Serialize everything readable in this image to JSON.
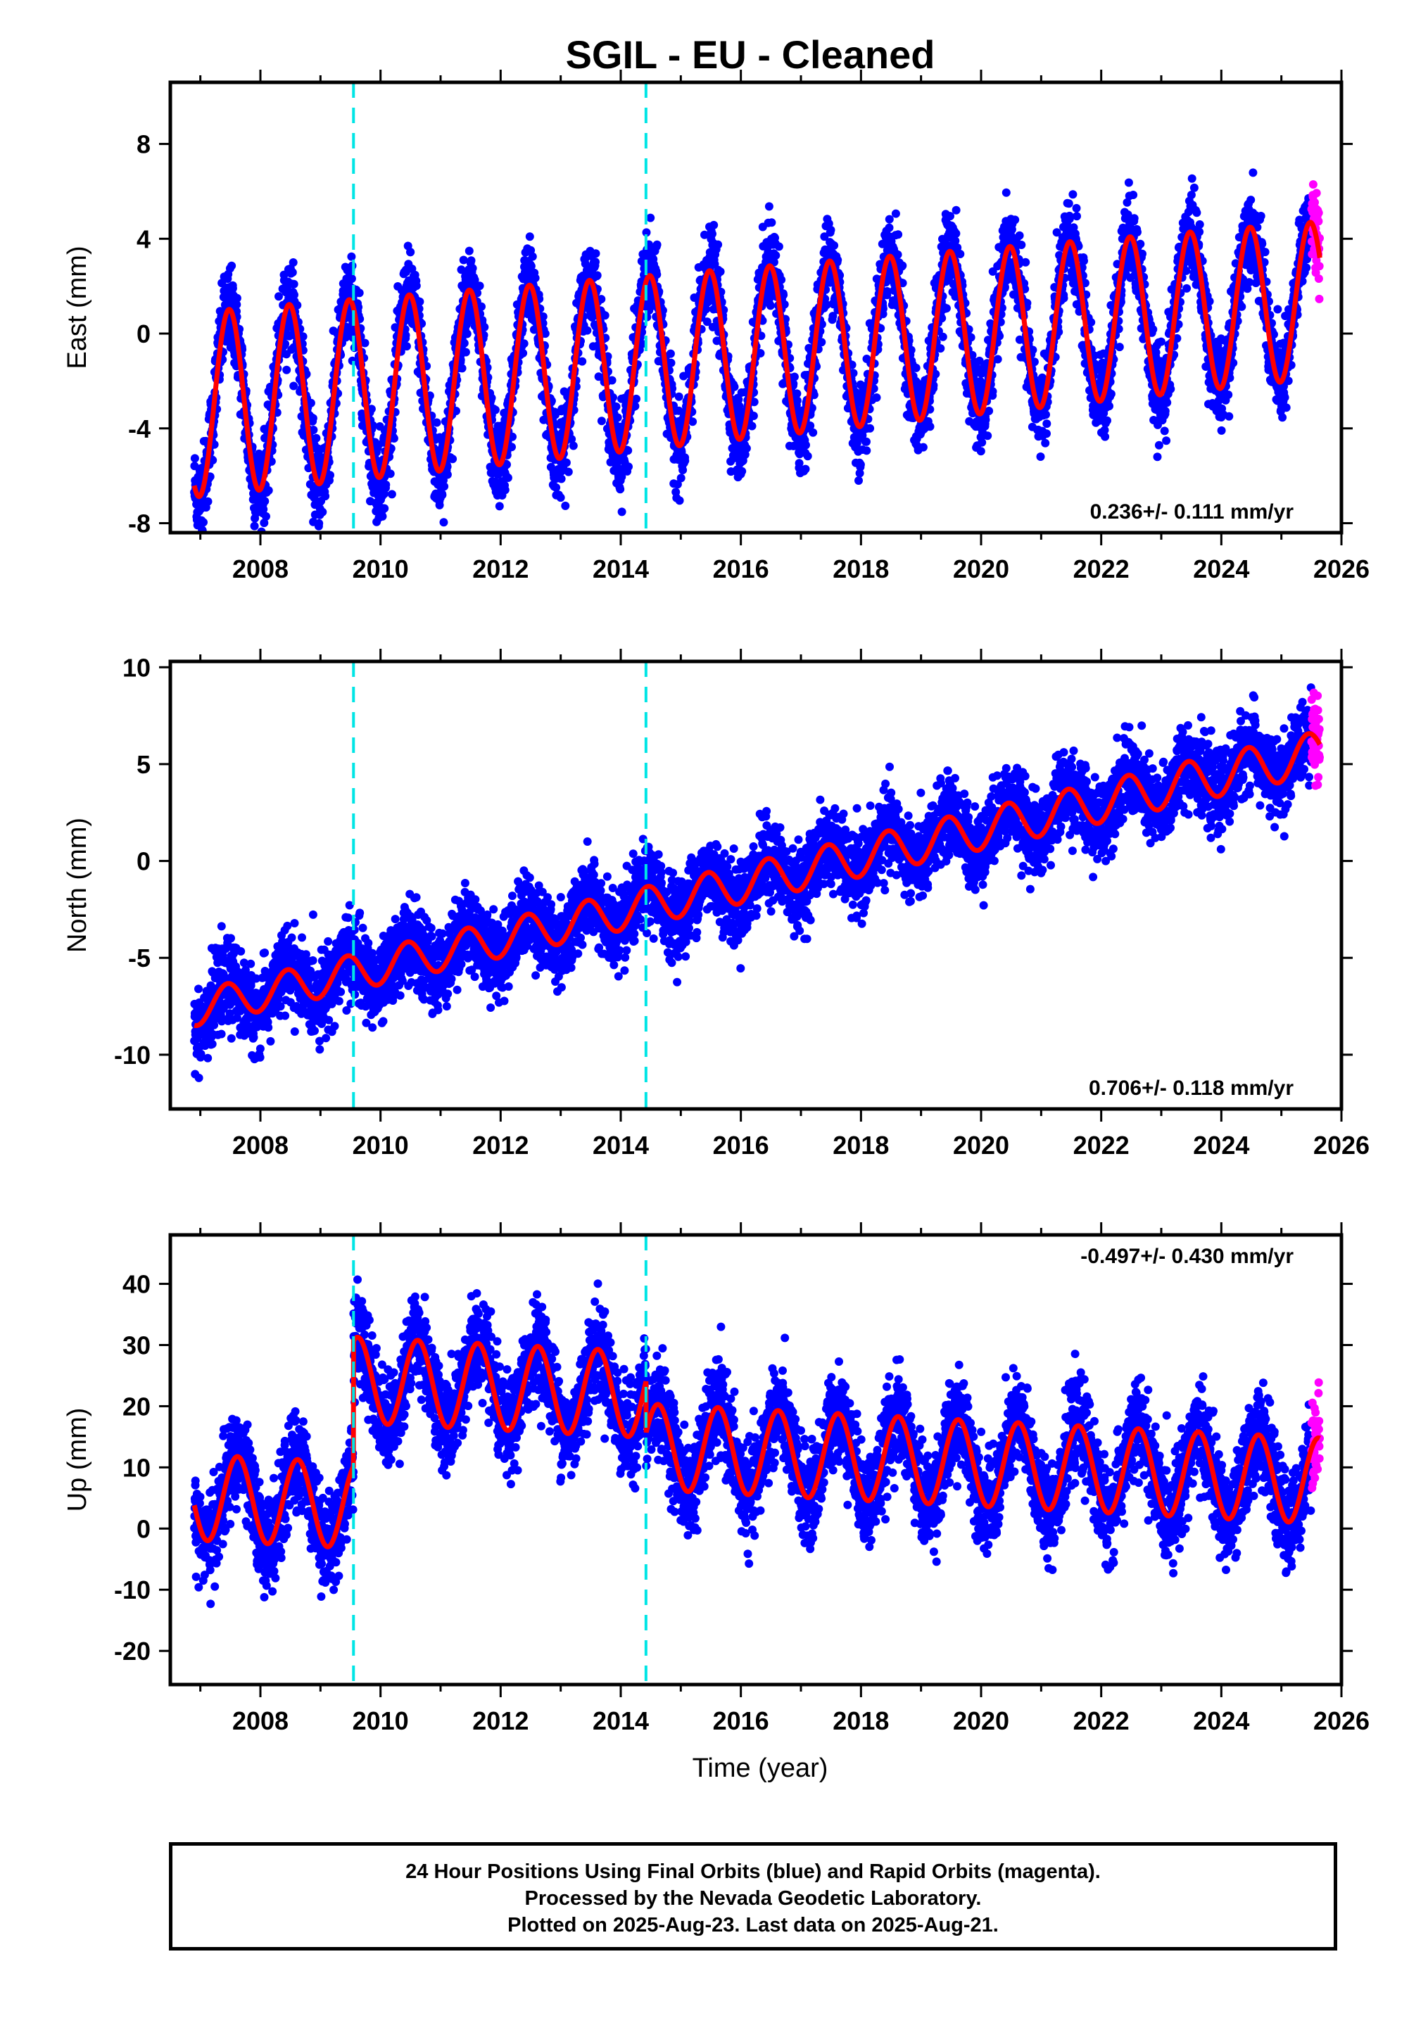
{
  "title": "SGIL  - EU - Cleaned",
  "x_axis_title": "Time (year)",
  "caption": {
    "line1": "24 Hour Positions Using Final Orbits (blue) and Rapid Orbits (magenta).",
    "line2": "Processed by the Nevada Geodetic Laboratory.",
    "line3": "Plotted on 2025-Aug-23. Last data on 2025-Aug-21."
  },
  "colors": {
    "final_orbits": "#0000ff",
    "rapid_orbits": "#ff00ff",
    "model": "#ff0000",
    "offsets": "#00e5e5",
    "frame": "#000000"
  },
  "chart_data": [
    {
      "type": "scatter",
      "panel": "east",
      "ylabel": "East (mm)",
      "xlim": [
        2006.5,
        2026
      ],
      "ylim": [
        -8.4,
        10.6
      ],
      "x_ticks": [
        2008,
        2010,
        2012,
        2014,
        2016,
        2018,
        2020,
        2022,
        2024,
        2026
      ],
      "x_tick_labels": [
        "2008",
        "2010",
        "2012",
        "2014",
        "2016",
        "2018",
        "2020",
        "2022",
        "2024",
        "2026"
      ],
      "y_ticks": [
        -8,
        -4,
        0,
        4,
        8
      ],
      "y_tick_labels": [
        "-8",
        "-4",
        "0",
        "4",
        "8"
      ],
      "rate_label": "0.236+/- 0.111 mm/yr",
      "rate_position": "bottom-right",
      "offset_epochs": [
        2009.55,
        2014.42
      ],
      "data_start": 2006.9,
      "data_end": 2025.64,
      "rapid_start": 2025.5,
      "model": {
        "offset_mm": -0.85,
        "trend_mm_per_yr": 0.236,
        "annual_amp_start_mm": 3.9,
        "annual_amp_end_mm": 3.3,
        "annual_peak": 0.48,
        "steps_mm": [
          0,
          0
        ]
      },
      "scatter_sd_mm": 0.9,
      "series": [
        {
          "name": "Final Orbits (blue)"
        },
        {
          "name": "Rapid Orbits (magenta)"
        }
      ]
    },
    {
      "type": "scatter",
      "panel": "north",
      "ylabel": "North (mm)",
      "xlim": [
        2006.5,
        2026
      ],
      "ylim": [
        -12.8,
        10.3
      ],
      "x_ticks": [
        2008,
        2010,
        2012,
        2014,
        2016,
        2018,
        2020,
        2022,
        2024,
        2026
      ],
      "x_tick_labels": [
        "2008",
        "2010",
        "2012",
        "2014",
        "2016",
        "2018",
        "2020",
        "2022",
        "2024",
        "2026"
      ],
      "y_ticks": [
        -10,
        -5,
        0,
        5,
        10
      ],
      "y_tick_labels": [
        "-10",
        "-5",
        "0",
        "5",
        "10"
      ],
      "rate_label": "0.706+/- 0.118 mm/yr",
      "rate_position": "bottom-right",
      "offset_epochs": [
        2009.55,
        2014.42
      ],
      "data_start": 2006.9,
      "data_end": 2025.64,
      "rapid_start": 2025.5,
      "model": {
        "offset_mm": -1.2,
        "trend_mm_per_yr": 0.706,
        "annual_amp_start_mm": 0.9,
        "annual_amp_end_mm": 1.1,
        "annual_peak": 0.45,
        "steps_mm": [
          0,
          0
        ]
      },
      "scatter_sd_mm": 1.0,
      "series": [
        {
          "name": "Final Orbits (blue)"
        },
        {
          "name": "Rapid Orbits (magenta)"
        }
      ]
    },
    {
      "type": "scatter",
      "panel": "up",
      "ylabel": "Up (mm)",
      "xlim": [
        2006.5,
        2026
      ],
      "ylim": [
        -25.5,
        48
      ],
      "x_ticks": [
        2008,
        2010,
        2012,
        2014,
        2016,
        2018,
        2020,
        2022,
        2024,
        2026
      ],
      "x_tick_labels": [
        "2008",
        "2010",
        "2012",
        "2014",
        "2016",
        "2018",
        "2020",
        "2022",
        "2024",
        "2026"
      ],
      "y_ticks": [
        -20,
        -10,
        0,
        10,
        20,
        30,
        40
      ],
      "y_tick_labels": [
        "-20",
        "-10",
        "0",
        "10",
        "20",
        "30",
        "40"
      ],
      "rate_label": "-0.497+/- 0.430 mm/yr",
      "rate_position": "top-right",
      "offset_epochs": [
        2009.55,
        2014.42
      ],
      "data_start": 2006.9,
      "data_end": 2025.64,
      "rapid_start": 2025.5,
      "model": {
        "offset_mm": 0.6,
        "trend_mm_per_yr": -0.497,
        "annual_amp_start_mm": 7.0,
        "annual_amp_end_mm": 7.0,
        "annual_peak": 0.62,
        "steps_mm": [
          20.5,
          -8.5
        ]
      },
      "scatter_sd_mm": 3.8,
      "series": [
        {
          "name": "Final Orbits (blue)"
        },
        {
          "name": "Rapid Orbits (magenta)"
        }
      ]
    }
  ]
}
